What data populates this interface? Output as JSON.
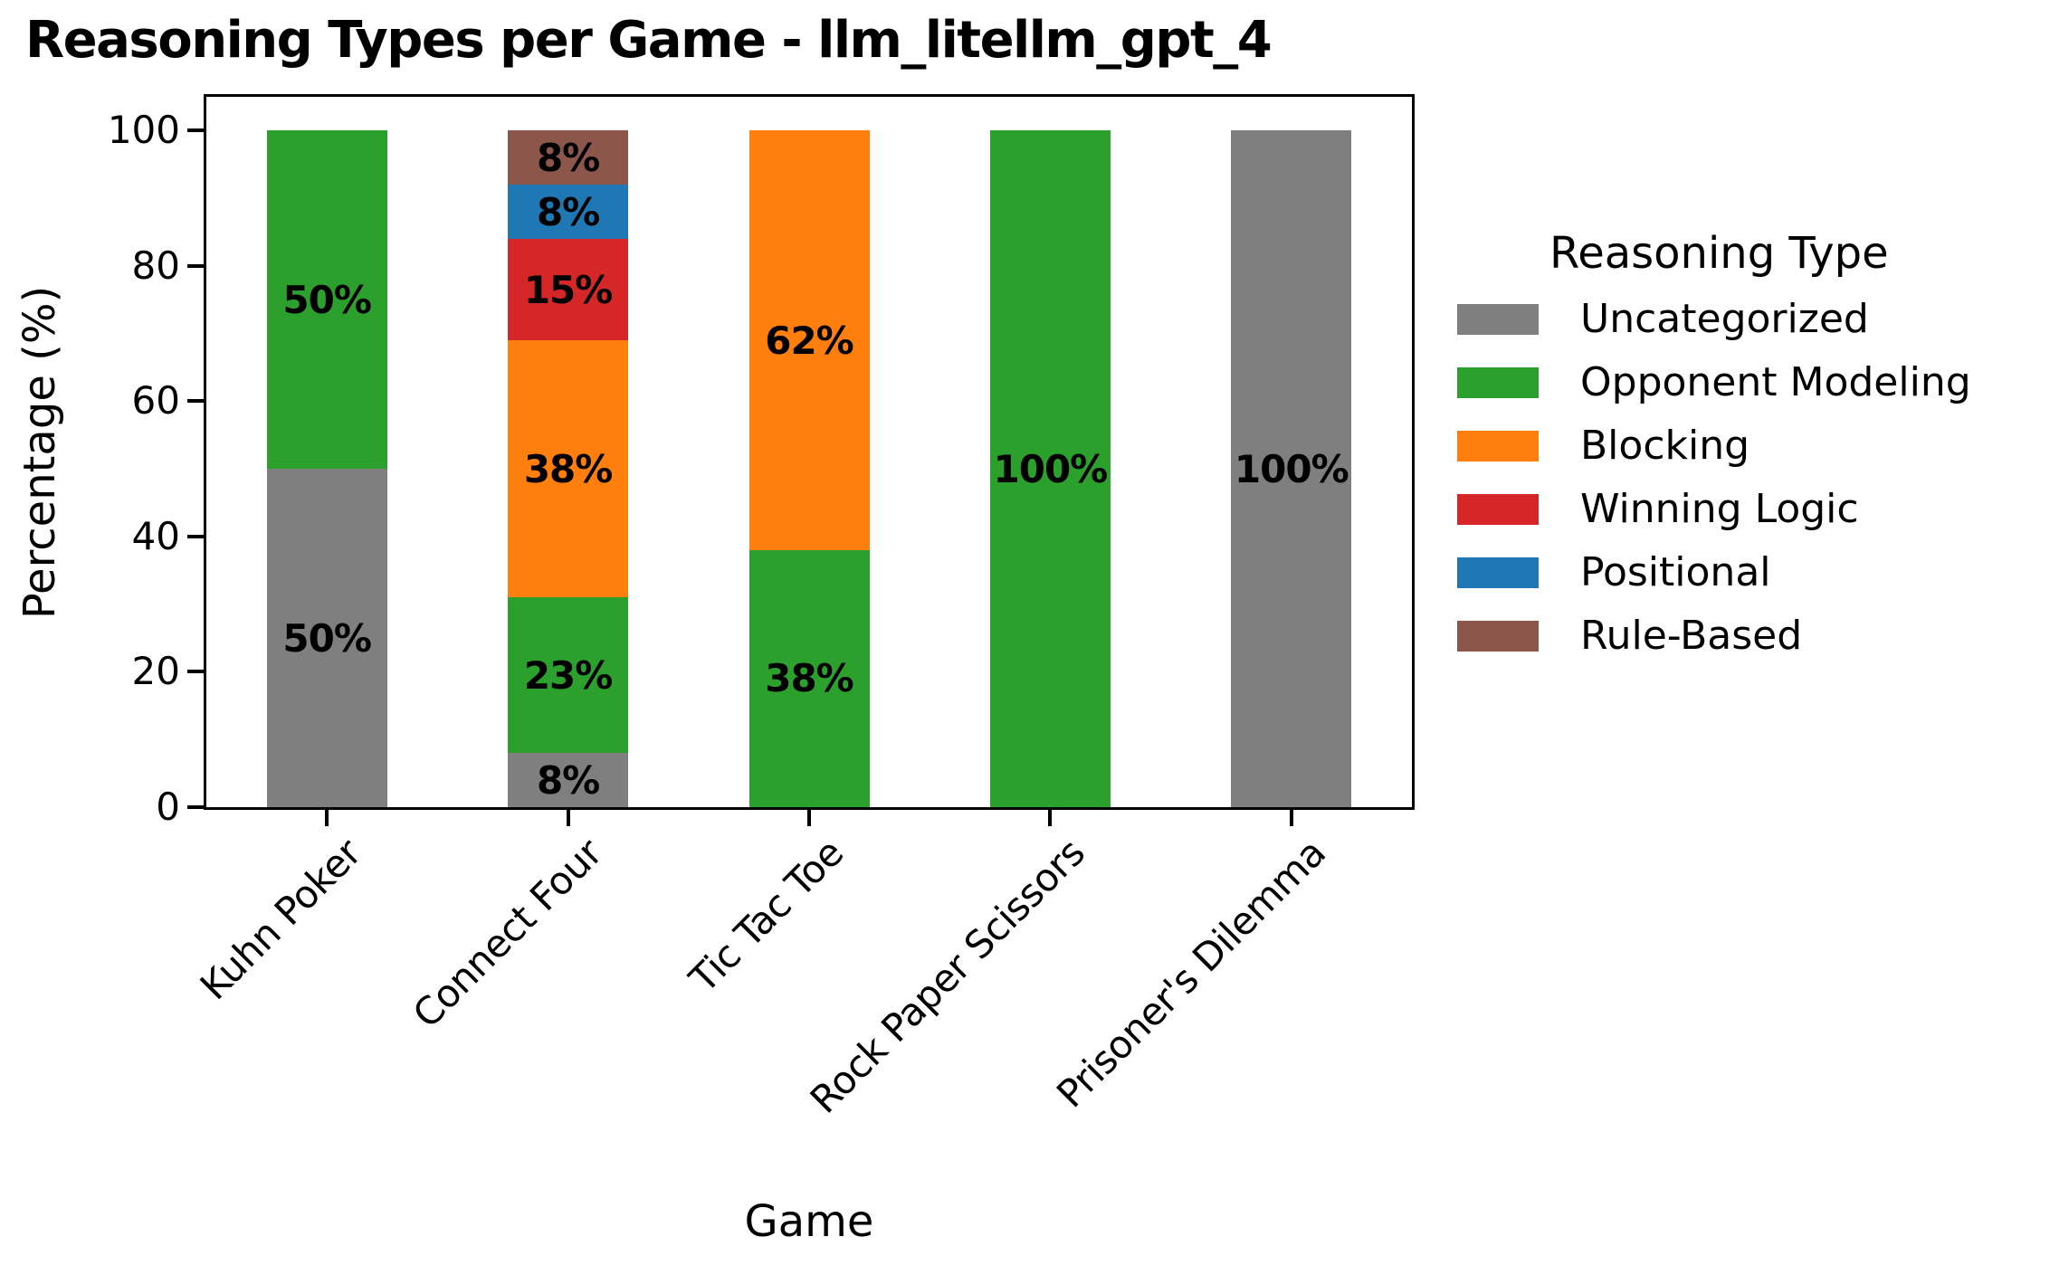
{
  "chart_data": {
    "type": "bar",
    "stacked": true,
    "title": "Reasoning Types per Game - llm_litellm_gpt_4",
    "xlabel": "Game",
    "ylabel": "Percentage (%)",
    "categories": [
      "Kuhn Poker",
      "Connect Four",
      "Tic Tac Toe",
      "Rock Paper Scissors",
      "Prisoner's Dilemma"
    ],
    "series": [
      {
        "name": "Uncategorized",
        "color": "#7f7f7f",
        "values": [
          50,
          8,
          0,
          0,
          100
        ]
      },
      {
        "name": "Opponent Modeling",
        "color": "#2ca02c",
        "values": [
          50,
          23,
          38,
          100,
          0
        ]
      },
      {
        "name": "Blocking",
        "color": "#ff7f0e",
        "values": [
          0,
          38,
          62,
          0,
          0
        ]
      },
      {
        "name": "Winning Logic",
        "color": "#d62728",
        "values": [
          0,
          15,
          0,
          0,
          0
        ]
      },
      {
        "name": "Positional",
        "color": "#1f77b4",
        "values": [
          0,
          8,
          0,
          0,
          0
        ]
      },
      {
        "name": "Rule-Based",
        "color": "#8c564b",
        "values": [
          0,
          8,
          0,
          0,
          0
        ]
      }
    ],
    "bar_label_format": "{v}%",
    "ylim": [
      0,
      105
    ],
    "yticks": [
      0,
      20,
      40,
      60,
      80,
      100
    ],
    "grid": false,
    "legend": {
      "title": "Reasoning Type",
      "position": "right",
      "entries": [
        "Uncategorized",
        "Opponent Modeling",
        "Blocking",
        "Winning Logic",
        "Positional",
        "Rule-Based"
      ]
    }
  }
}
